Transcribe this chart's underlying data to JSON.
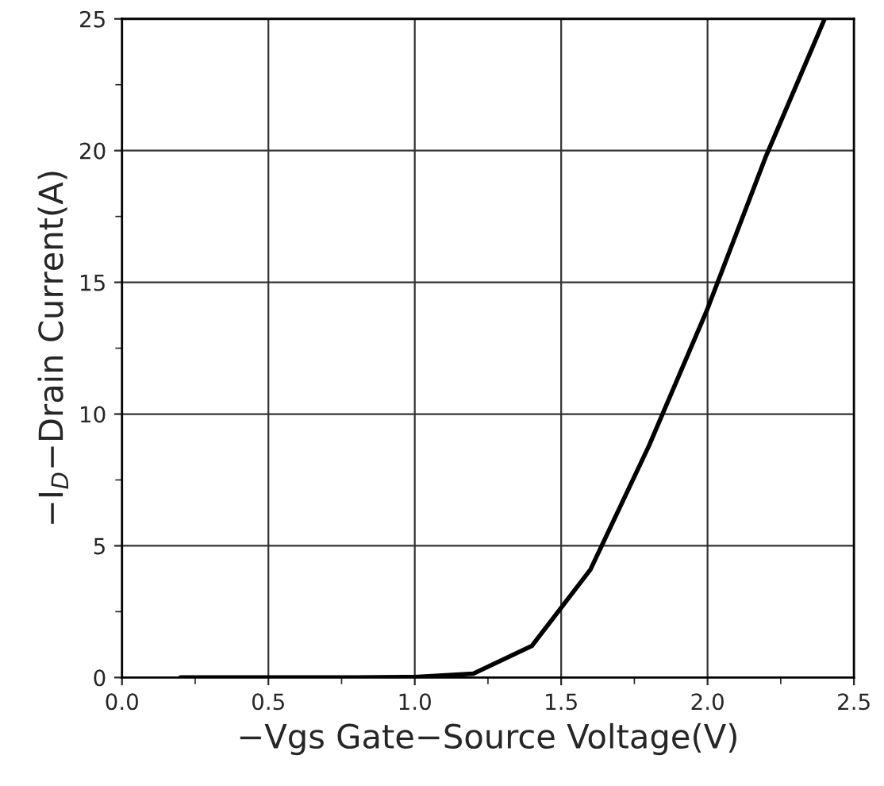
{
  "chart_data": {
    "type": "line",
    "xlabel": "−Vgs Gate−Source Voltage(V)",
    "ylabel": "−I$_{D}$−Drain Current(A)",
    "x": [
      0.2,
      0.4,
      0.6,
      0.8,
      1.0,
      1.2,
      1.4,
      1.6,
      1.8,
      2.0,
      2.2,
      2.4
    ],
    "series": [
      {
        "color": "#000000",
        "values": [
          0,
          0,
          0,
          0,
          0.02,
          0.15,
          1.2,
          4.1,
          8.8,
          14.0,
          19.8,
          25.0
        ]
      }
    ],
    "xlim": [
      0,
      2.5
    ],
    "ylim": [
      0,
      25
    ],
    "xticks": [
      {
        "value": 0,
        "label": "0.0"
      },
      0.5,
      {
        "value": 1,
        "label": "1.0"
      },
      1.5,
      {
        "value": 2,
        "label": "2.0"
      },
      2.5
    ],
    "yticks": [
      0,
      5,
      10,
      15,
      20,
      25
    ],
    "grid": true,
    "legend": false,
    "marker": "none",
    "line_style": "solid"
  }
}
